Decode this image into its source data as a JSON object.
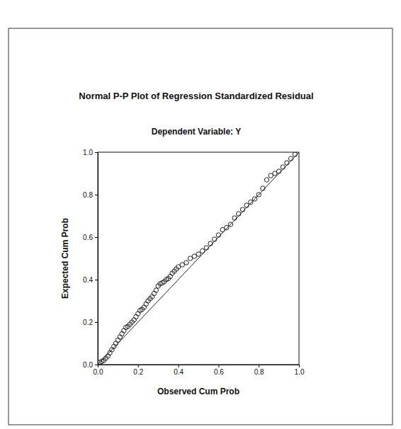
{
  "chart_data": {
    "type": "scatter",
    "title": "Normal P-P Plot of Regression Standardized Residual",
    "subtitle": "Dependent Variable: Y",
    "x_label": "Observed Cum Prob",
    "y_label": "Expected Cum Prob",
    "xlim": [
      0,
      1
    ],
    "ylim": [
      0,
      1
    ],
    "xticks": [
      {
        "value": 0,
        "label": "0.0"
      },
      0.2,
      0.4,
      0.6,
      0.8,
      {
        "value": 1,
        "label": "1.0"
      }
    ],
    "yticks": [
      {
        "value": 0,
        "label": "0.0"
      },
      0.2,
      0.4,
      0.6,
      0.8,
      {
        "value": 1,
        "label": "1.0"
      }
    ],
    "grid": false,
    "series": [
      {
        "type": "scatter",
        "marker": "circle",
        "color": "#222222",
        "x": [
          0.01,
          0.02,
          0.03,
          0.04,
          0.05,
          0.06,
          0.07,
          0.08,
          0.09,
          0.1,
          0.11,
          0.12,
          0.13,
          0.14,
          0.15,
          0.16,
          0.17,
          0.18,
          0.19,
          0.2,
          0.21,
          0.22,
          0.23,
          0.24,
          0.25,
          0.26,
          0.27,
          0.28,
          0.29,
          0.3,
          0.31,
          0.32,
          0.33,
          0.34,
          0.35,
          0.36,
          0.37,
          0.38,
          0.39,
          0.4,
          0.42,
          0.44,
          0.46,
          0.48,
          0.5,
          0.52,
          0.54,
          0.56,
          0.58,
          0.6,
          0.62,
          0.64,
          0.66,
          0.68,
          0.7,
          0.72,
          0.74,
          0.76,
          0.78,
          0.8,
          0.82,
          0.84,
          0.86,
          0.88,
          0.9,
          0.92,
          0.94,
          0.96,
          0.98
        ],
        "values": [
          0.01,
          0.015,
          0.02,
          0.03,
          0.04,
          0.055,
          0.07,
          0.085,
          0.1,
          0.115,
          0.13,
          0.145,
          0.16,
          0.175,
          0.18,
          0.19,
          0.2,
          0.21,
          0.225,
          0.24,
          0.255,
          0.26,
          0.27,
          0.285,
          0.3,
          0.31,
          0.32,
          0.335,
          0.35,
          0.37,
          0.38,
          0.385,
          0.39,
          0.4,
          0.405,
          0.415,
          0.43,
          0.44,
          0.45,
          0.46,
          0.47,
          0.48,
          0.5,
          0.51,
          0.52,
          0.535,
          0.55,
          0.57,
          0.59,
          0.61,
          0.635,
          0.645,
          0.66,
          0.69,
          0.71,
          0.73,
          0.75,
          0.765,
          0.78,
          0.8,
          0.83,
          0.87,
          0.89,
          0.9,
          0.91,
          0.93,
          0.95,
          0.97,
          0.99
        ]
      },
      {
        "type": "line",
        "line_style": "solid",
        "color": "#222222",
        "x": [
          0,
          1
        ],
        "values": [
          0,
          1
        ]
      }
    ]
  }
}
